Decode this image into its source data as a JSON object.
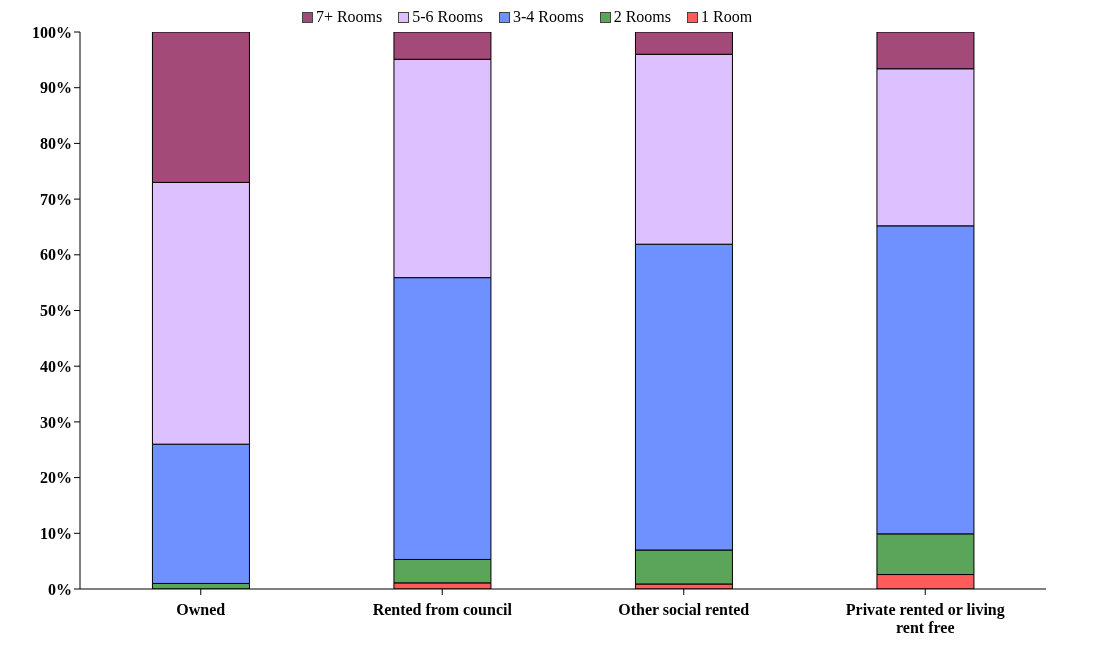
{
  "chart_data": {
    "type": "bar",
    "stacked": true,
    "categories": [
      "Owned",
      "Rented from council",
      "Other social rented",
      "Private rented or living rent free"
    ],
    "series": [
      {
        "name": "1 Room",
        "color": "#ff5b5b",
        "values": [
          0,
          1.1,
          0.9,
          2.6
        ]
      },
      {
        "name": "2 Rooms",
        "color": "#5aa55a",
        "values": [
          1,
          4.2,
          6.1,
          7.3
        ]
      },
      {
        "name": "3-4 Rooms",
        "color": "#6f90ff",
        "values": [
          25,
          50.6,
          54.9,
          55.3
        ]
      },
      {
        "name": "5-6 Rooms",
        "color": "#dcc0ff",
        "values": [
          47,
          39.2,
          34.1,
          28.2
        ]
      },
      {
        "name": "7+ Rooms",
        "color": "#a34a78",
        "values": [
          27,
          4.9,
          4,
          6.6
        ]
      }
    ],
    "ylim": [
      0,
      100
    ],
    "yticks": [
      {
        "value": 0,
        "label": "0%"
      },
      {
        "value": 10,
        "label": "10%"
      },
      {
        "value": 20,
        "label": "20%"
      },
      {
        "value": 30,
        "label": "30%"
      },
      {
        "value": 40,
        "label": "40%"
      },
      {
        "value": 50,
        "label": "50%"
      },
      {
        "value": 60,
        "label": "60%"
      },
      {
        "value": 70,
        "label": "70%"
      },
      {
        "value": 80,
        "label": "80%"
      },
      {
        "value": 90,
        "label": "90%"
      },
      {
        "value": 100,
        "label": "100%"
      }
    ],
    "grid": false,
    "legend": "top"
  }
}
